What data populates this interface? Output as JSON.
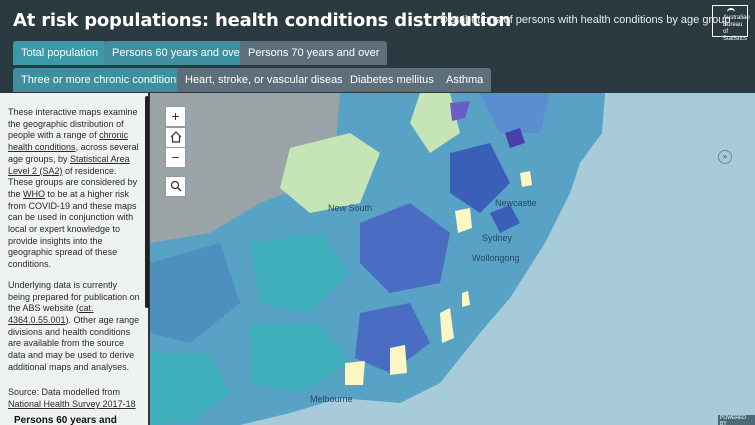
{
  "header": {
    "title": "At risk populations: health conditions distribution",
    "subtitle": "Distributions of persons with health conditions by age group",
    "logo_lines": [
      "Australian",
      "Bureau of",
      "Statistics"
    ]
  },
  "tabs_row1": [
    {
      "label": "Total population",
      "state": "inactive-teal"
    },
    {
      "label": "Persons 60 years and over",
      "state": "active"
    },
    {
      "label": "Persons 70 years and over",
      "state": "inactive"
    }
  ],
  "tabs_row2": [
    {
      "label": "Three or more chronic conditions",
      "state": "active"
    },
    {
      "label": "Heart, stroke, or vascular disease",
      "state": "inactive"
    },
    {
      "label": "Diabetes mellitus",
      "state": "inactive"
    },
    {
      "label": "Asthma",
      "state": "inactive"
    }
  ],
  "sidebar": {
    "p1": {
      "t1": "These interactive maps examine the geographic distribution of people with a range of ",
      "link1": "chronic health conditions",
      "t2": ", across several age groups, by ",
      "link2": "Statistical Area Level 2 (SA2)",
      "t3": " of residence. These groups are considered by the ",
      "link3": "WHO",
      "t4": " to be at a higher risk from COVID-19 and these maps can be used in conjunction with local or expert knowledge to provide insights into the geographic spread of these conditions."
    },
    "p2": {
      "t1": "Underlying data is currently being prepared for publication on the ABS website (",
      "link1": "cat. 4364.0.55.001",
      "t2": "). Other age range divisions and health conditions are available from the source data and may be used to derive additional maps and analyses."
    },
    "p3": {
      "t1": "Source: Data modelled from ",
      "link1": "National Health Survey 2017-18"
    },
    "subheading": "Persons 60 years and"
  },
  "map": {
    "controls": {
      "zoom_in": "+",
      "zoom_out": "−"
    },
    "labels": [
      "New South",
      "Sydney",
      "Melbourne",
      "Newcastle",
      "Wollongong"
    ],
    "expand": "»",
    "powered": "POWERED BY"
  },
  "colors": {
    "header_bg": "#2b3a40",
    "tab_active": "#3f8fa1",
    "tab_inactive": "#5c6f7a",
    "sea": "#a7cbd8",
    "land_light": "#c6e6b8",
    "land_mid": "#56a3c6",
    "land_dark": "#4a6cc2",
    "land_high": "#fdf7c4"
  }
}
